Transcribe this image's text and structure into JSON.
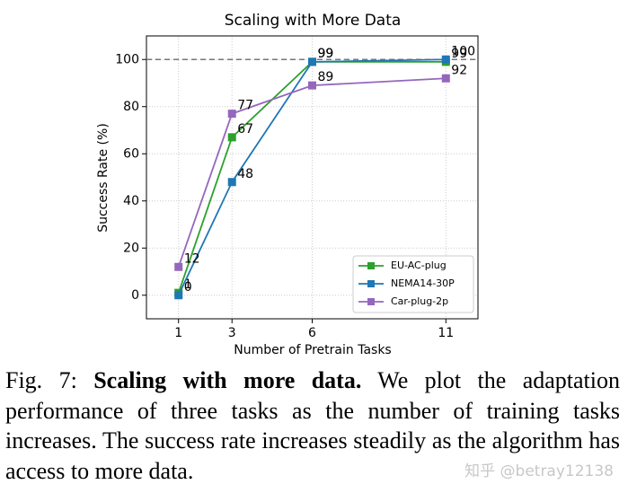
{
  "chart_data": {
    "type": "line",
    "title": "Scaling with More Data",
    "x_label": "Number of Pretrain Tasks",
    "y_label": "Success Rate (%)",
    "x": [
      1,
      3,
      6,
      11
    ],
    "series": [
      {
        "name": "EU-AC-plug",
        "color": "#2ca02c",
        "values": [
          1,
          67,
          99,
          99
        ]
      },
      {
        "name": "NEMA14-30P",
        "color": "#1f77b4",
        "values": [
          0,
          48,
          99,
          100
        ]
      },
      {
        "name": "Car-plug-2p",
        "color": "#9467bd",
        "values": [
          12,
          77,
          89,
          92
        ]
      }
    ],
    "xlim": [
      -0.2,
      12.2
    ],
    "xticks": [
      1,
      3,
      6,
      11
    ],
    "ylim": [
      -10,
      110
    ],
    "yticks": [
      0,
      20,
      40,
      60,
      80,
      100
    ],
    "reference_line": 100,
    "grid": true,
    "legend": "lower right"
  },
  "caption": {
    "label": "Fig. 7:",
    "bold": "Scaling with more data.",
    "text": "We plot the adaptation performance of three tasks as the number of training tasks increases. The success rate increases steadily as the algorithm has access to more data."
  },
  "watermark": "知乎 @betray12138"
}
